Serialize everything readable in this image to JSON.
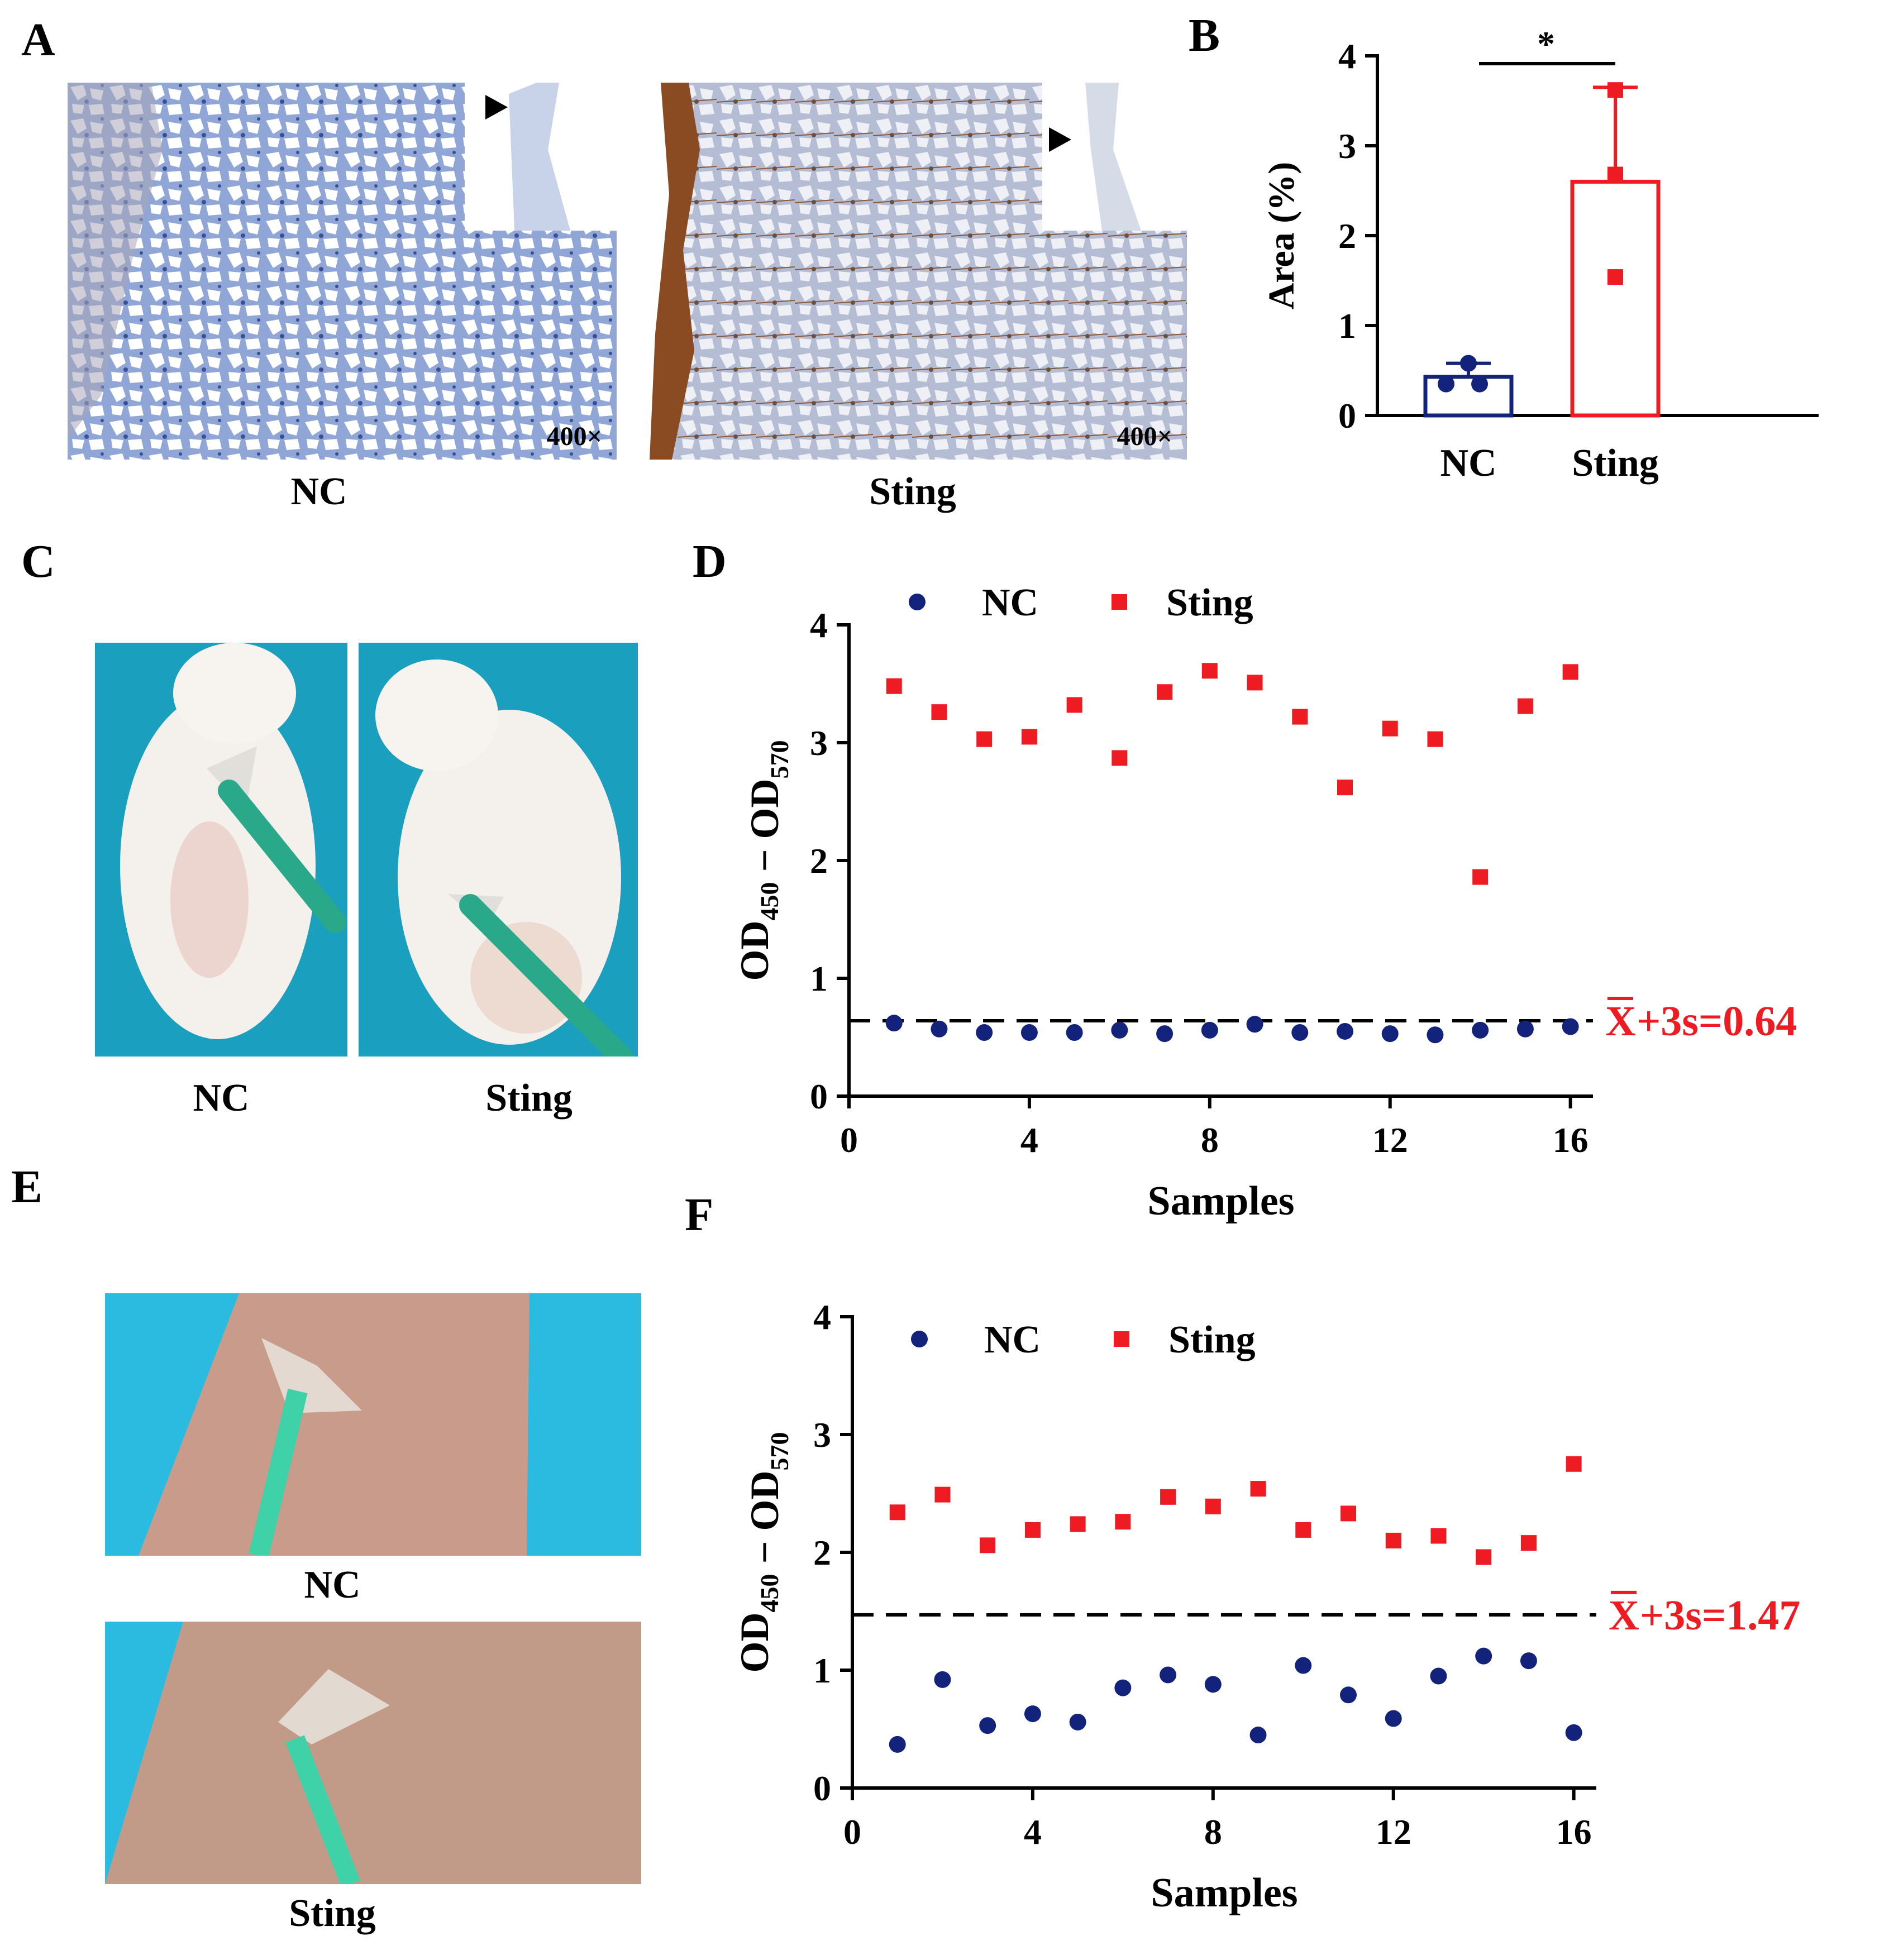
{
  "panels": {
    "A": {
      "letter": "A",
      "images": [
        {
          "caption": "NC",
          "magnification": "400×"
        },
        {
          "caption": "Sting",
          "magnification": "400×"
        }
      ]
    },
    "B": {
      "letter": "B"
    },
    "C": {
      "letter": "C",
      "captions": [
        "NC",
        "Sting"
      ]
    },
    "D": {
      "letter": "D"
    },
    "E": {
      "letter": "E",
      "captions": [
        "NC",
        "Sting"
      ]
    },
    "F": {
      "letter": "F"
    }
  },
  "colors": {
    "nc": "#13237c",
    "sting": "#ee1c22",
    "threshold_text": "#ee1c22"
  },
  "chart_data": [
    {
      "panel": "B",
      "type": "bar",
      "categories": [
        "NC",
        "Sting"
      ],
      "values": [
        0.43,
        2.6
      ],
      "error_upper": [
        0.58,
        3.65
      ],
      "points": [
        [
          0.58,
          0.35,
          0.35
        ],
        [
          3.62,
          2.68,
          1.54
        ]
      ],
      "ylabel": "Area (%)",
      "ylim": [
        0,
        4
      ],
      "yticks": [
        0,
        1,
        2,
        3,
        4
      ],
      "significance": "*"
    },
    {
      "panel": "D",
      "type": "scatter",
      "xlabel": "Samples",
      "ylabel_main": "OD",
      "ylabel_sub1": "450",
      "ylabel_dash": "−",
      "ylabel_sub2": "570",
      "xlim": [
        0,
        16.5
      ],
      "ylim": [
        0,
        4
      ],
      "xticks": [
        0,
        4,
        8,
        12,
        16
      ],
      "yticks": [
        0,
        1,
        2,
        3,
        4
      ],
      "legend": [
        "NC",
        "Sting"
      ],
      "x": [
        1,
        2,
        3,
        4,
        5,
        6,
        7,
        8,
        9,
        10,
        11,
        12,
        13,
        14,
        15,
        16
      ],
      "series": [
        {
          "name": "NC",
          "values": [
            0.62,
            0.57,
            0.54,
            0.54,
            0.54,
            0.56,
            0.53,
            0.56,
            0.61,
            0.54,
            0.55,
            0.53,
            0.52,
            0.56,
            0.57,
            0.59
          ]
        },
        {
          "name": "Sting",
          "values": [
            3.48,
            3.26,
            3.03,
            3.05,
            3.32,
            2.87,
            3.43,
            3.61,
            3.51,
            3.22,
            2.62,
            3.12,
            3.03,
            1.86,
            3.31,
            3.6
          ]
        }
      ],
      "threshold": 0.64,
      "threshold_label": "+3s=0.64"
    },
    {
      "panel": "F",
      "type": "scatter",
      "xlabel": "Samples",
      "ylabel_main": "OD",
      "ylabel_sub1": "450",
      "ylabel_dash": "−",
      "ylabel_sub2": "570",
      "xlim": [
        0,
        16.5
      ],
      "ylim": [
        0,
        4
      ],
      "xticks": [
        0,
        4,
        8,
        12,
        16
      ],
      "yticks": [
        0,
        1,
        2,
        3,
        4
      ],
      "legend": [
        "NC",
        "Sting"
      ],
      "x": [
        1,
        2,
        3,
        4,
        5,
        6,
        7,
        8,
        9,
        10,
        11,
        12,
        13,
        14,
        15,
        16
      ],
      "series": [
        {
          "name": "NC",
          "values": [
            0.37,
            0.92,
            0.53,
            0.63,
            0.56,
            0.85,
            0.96,
            0.88,
            0.45,
            1.04,
            0.79,
            0.59,
            0.95,
            1.12,
            1.08,
            0.47
          ]
        },
        {
          "name": "Sting",
          "values": [
            2.34,
            2.49,
            2.06,
            2.19,
            2.24,
            2.26,
            2.47,
            2.39,
            2.54,
            2.19,
            2.33,
            2.1,
            2.14,
            1.96,
            2.08,
            2.75
          ]
        }
      ],
      "threshold": 1.47,
      "threshold_label": "+3s=1.47"
    }
  ]
}
